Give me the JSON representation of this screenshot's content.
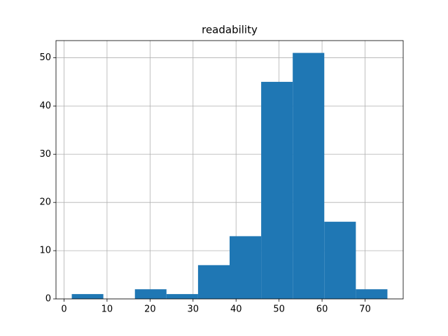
{
  "chart_data": {
    "type": "histogram",
    "title": "readability",
    "bins": [
      1.8,
      9.14,
      16.48,
      23.82,
      31.16,
      38.5,
      45.84,
      53.18,
      60.52,
      67.86,
      75.2
    ],
    "values": [
      1,
      0,
      2,
      1,
      7,
      13,
      45,
      51,
      16,
      2
    ],
    "color": "#1f77b4",
    "xlim": [
      -1.87,
      78.87
    ],
    "ylim": [
      0,
      53.55
    ],
    "xticks": [
      0,
      10,
      20,
      30,
      40,
      50,
      60,
      70
    ],
    "yticks": [
      0,
      10,
      20,
      30,
      40,
      50
    ],
    "grid": true
  }
}
